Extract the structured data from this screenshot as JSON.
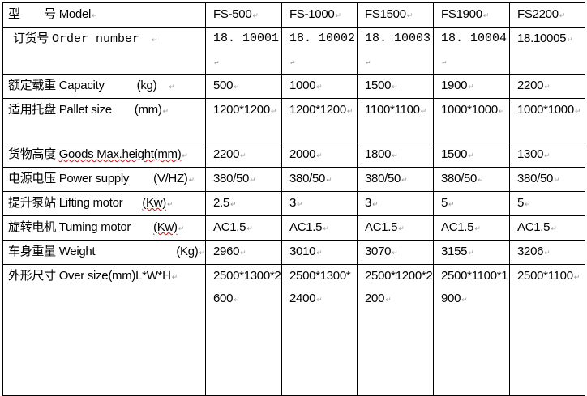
{
  "columns": [
    "FS-500",
    "FS-1000",
    "FS1500",
    "FS1900",
    "FS2200"
  ],
  "rows": [
    {
      "label_cn": "型　　号",
      "label_en": "Model",
      "unit": "",
      "values": [
        "FS-500",
        "FS-1000",
        "FS1500",
        "FS1900",
        "FS2200"
      ]
    },
    {
      "label_cn": "订货号",
      "label_en": "Order number",
      "unit": "",
      "values": [
        "18. 10001",
        "18. 10002",
        "18. 10003",
        "18. 10004",
        "18.10005"
      ]
    },
    {
      "label_cn": "额定载重",
      "label_en": "Capacity",
      "unit": "(kg)",
      "values": [
        "500",
        "1000",
        "1500",
        "1900",
        "2200"
      ]
    },
    {
      "label_cn": "适用托盘",
      "label_en": "Pallet size",
      "unit": "(mm)",
      "values": [
        "1200*1200",
        "1200*1200",
        "1100*1100",
        "1000*1000",
        "1000*1000"
      ]
    },
    {
      "label_cn": "货物高度",
      "label_en": "Goods Max.height(mm)",
      "unit": "",
      "values": [
        "2200",
        "2000",
        "1800",
        "1500",
        "1300"
      ]
    },
    {
      "label_cn": "电源电压",
      "label_en": "Power supply",
      "unit": "(V/HZ)",
      "values": [
        "380/50",
        "380/50",
        "380/50",
        "380/50",
        "380/50"
      ]
    },
    {
      "label_cn": "提升泵站",
      "label_en": "Lifting motor",
      "unit": "(Kw)",
      "values": [
        "2.5",
        "3",
        "3",
        "5",
        "5"
      ]
    },
    {
      "label_cn": "旋转电机",
      "label_en": "Tuming motor",
      "unit": "(Kw)",
      "values": [
        "AC1.5",
        "AC1.5",
        "AC1.5",
        "AC1.5",
        "AC1.5"
      ]
    },
    {
      "label_cn": "车身重量",
      "label_en": "Weight",
      "unit": "(Kg)",
      "values": [
        "2960",
        "3010",
        "3070",
        "3155",
        "3206"
      ]
    },
    {
      "label_cn": "外形尺寸",
      "label_en": "Over size(mm)L*W*H",
      "unit": "",
      "values": [
        "2500*1300*2600",
        "2500*1300*2400",
        "2500*1200*2200",
        "2500*1100*1900",
        "2500*1100"
      ]
    }
  ]
}
